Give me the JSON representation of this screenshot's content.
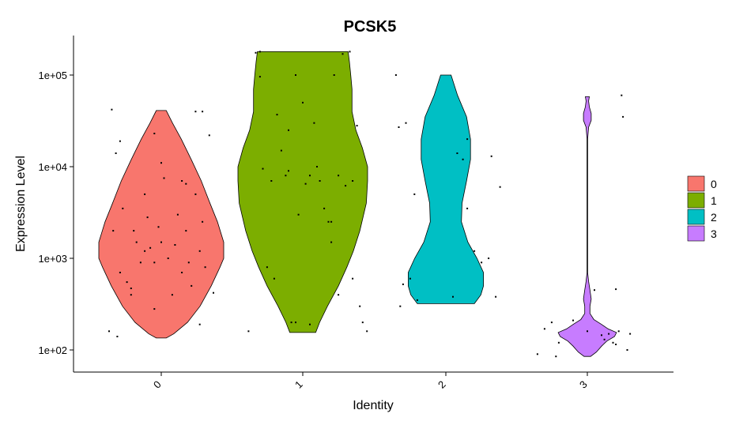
{
  "chart_data": {
    "type": "violin",
    "title": "PCSK5",
    "xlabel": "Identity",
    "ylabel": "Expression Level",
    "y_scale": "log10",
    "ylim": [
      60,
      200000
    ],
    "y_ticks": [
      {
        "value": 100,
        "label": "1e+02"
      },
      {
        "value": 1000,
        "label": "1e+03"
      },
      {
        "value": 10000,
        "label": "1e+04"
      },
      {
        "value": 100000,
        "label": "1e+05"
      }
    ],
    "categories": [
      "0",
      "1",
      "2",
      "3"
    ],
    "colors": [
      "#F8766D",
      "#7CAE00",
      "#00BFC4",
      "#C77CFF"
    ],
    "legend_position": "right",
    "series": [
      {
        "name": "0",
        "min": 135,
        "max": 41000,
        "profile": [
          [
            135,
            0.08
          ],
          [
            150,
            0.2
          ],
          [
            200,
            0.42
          ],
          [
            300,
            0.62
          ],
          [
            500,
            0.8
          ],
          [
            800,
            0.94
          ],
          [
            1000,
            1.0
          ],
          [
            1500,
            1.0
          ],
          [
            2500,
            0.9
          ],
          [
            4000,
            0.78
          ],
          [
            7000,
            0.64
          ],
          [
            12000,
            0.48
          ],
          [
            20000,
            0.32
          ],
          [
            30000,
            0.18
          ],
          [
            41000,
            0.08
          ]
        ],
        "points": [
          [
            -0.38,
            160
          ],
          [
            -0.32,
            140
          ],
          [
            -0.3,
            700
          ],
          [
            -0.28,
            3500
          ],
          [
            -0.25,
            550
          ],
          [
            -0.22,
            400
          ],
          [
            -0.35,
            2000
          ],
          [
            -0.33,
            14000
          ],
          [
            -0.36,
            42000
          ],
          [
            -0.3,
            19000
          ],
          [
            -0.18,
            1500
          ],
          [
            -0.15,
            900
          ],
          [
            -0.12,
            1200
          ],
          [
            -0.12,
            5000
          ],
          [
            -0.1,
            2800
          ],
          [
            -0.08,
            1300
          ],
          [
            -0.05,
            900
          ],
          [
            -0.05,
            23000
          ],
          [
            -0.02,
            2200
          ],
          [
            0.0,
            1500
          ],
          [
            0.02,
            7500
          ],
          [
            0.0,
            11000
          ],
          [
            0.05,
            1000
          ],
          [
            0.08,
            400
          ],
          [
            0.1,
            1400
          ],
          [
            0.12,
            3000
          ],
          [
            0.15,
            700
          ],
          [
            0.15,
            7000
          ],
          [
            0.18,
            6500
          ],
          [
            0.2,
            900
          ],
          [
            0.22,
            500
          ],
          [
            0.25,
            5000
          ],
          [
            0.28,
            1200
          ],
          [
            0.3,
            2500
          ],
          [
            0.32,
            800
          ],
          [
            0.35,
            22000
          ],
          [
            0.3,
            40000
          ],
          [
            0.25,
            40000
          ],
          [
            -0.05,
            280
          ],
          [
            -0.2,
            2000
          ],
          [
            0.38,
            420
          ],
          [
            0.28,
            190
          ],
          [
            -0.22,
            470
          ],
          [
            0.18,
            2000
          ]
        ]
      },
      {
        "name": "1",
        "min": 155,
        "max": 180000,
        "profile": [
          [
            155,
            0.2
          ],
          [
            200,
            0.26
          ],
          [
            300,
            0.38
          ],
          [
            500,
            0.55
          ],
          [
            800,
            0.68
          ],
          [
            1200,
            0.78
          ],
          [
            2000,
            0.88
          ],
          [
            4000,
            0.98
          ],
          [
            7000,
            1.0
          ],
          [
            10000,
            1.0
          ],
          [
            16000,
            0.92
          ],
          [
            25000,
            0.82
          ],
          [
            40000,
            0.76
          ],
          [
            70000,
            0.76
          ],
          [
            100000,
            0.74
          ],
          [
            140000,
            0.72
          ],
          [
            180000,
            0.7
          ]
        ],
        "points": [
          [
            -0.38,
            160
          ],
          [
            -0.33,
            175000
          ],
          [
            -0.3,
            96000
          ],
          [
            -0.3,
            180000
          ],
          [
            -0.28,
            9500
          ],
          [
            -0.25,
            800
          ],
          [
            -0.22,
            7000
          ],
          [
            -0.2,
            600
          ],
          [
            -0.18,
            37000
          ],
          [
            -0.15,
            15000
          ],
          [
            -0.12,
            8000
          ],
          [
            -0.1,
            9000
          ],
          [
            -0.08,
            200
          ],
          [
            -0.05,
            100000
          ],
          [
            -0.05,
            200
          ],
          [
            -0.03,
            3000
          ],
          [
            0.0,
            50000
          ],
          [
            0.02,
            6500
          ],
          [
            0.05,
            8000
          ],
          [
            0.08,
            30000
          ],
          [
            0.1,
            10000
          ],
          [
            0.12,
            7000
          ],
          [
            0.15,
            3500
          ],
          [
            0.18,
            2500
          ],
          [
            0.2,
            2500
          ],
          [
            0.2,
            1500
          ],
          [
            0.22,
            100000
          ],
          [
            0.25,
            8000
          ],
          [
            0.25,
            400
          ],
          [
            0.28,
            170000
          ],
          [
            0.3,
            6200
          ],
          [
            0.33,
            180000
          ],
          [
            0.35,
            7000
          ],
          [
            0.35,
            600
          ],
          [
            0.38,
            28000
          ],
          [
            0.4,
            300
          ],
          [
            0.42,
            200
          ],
          [
            0.45,
            160
          ],
          [
            -0.1,
            25000
          ],
          [
            0.05,
            190
          ]
        ]
      },
      {
        "name": "2",
        "min": 320,
        "max": 100000,
        "profile": [
          [
            320,
            0.44
          ],
          [
            400,
            0.54
          ],
          [
            500,
            0.58
          ],
          [
            700,
            0.58
          ],
          [
            1000,
            0.48
          ],
          [
            1500,
            0.34
          ],
          [
            2500,
            0.24
          ],
          [
            4000,
            0.25
          ],
          [
            7000,
            0.32
          ],
          [
            12000,
            0.38
          ],
          [
            20000,
            0.38
          ],
          [
            35000,
            0.32
          ],
          [
            60000,
            0.18
          ],
          [
            100000,
            0.08
          ]
        ],
        "points": [
          [
            -0.35,
            100000
          ],
          [
            -0.33,
            27000
          ],
          [
            -0.32,
            300
          ],
          [
            -0.3,
            520
          ],
          [
            -0.28,
            30000
          ],
          [
            -0.25,
            600
          ],
          [
            -0.22,
            5000
          ],
          [
            -0.2,
            350
          ],
          [
            0.05,
            380
          ],
          [
            0.08,
            14000
          ],
          [
            0.12,
            12000
          ],
          [
            0.15,
            3500
          ],
          [
            0.15,
            20000
          ],
          [
            0.2,
            1200
          ],
          [
            0.25,
            900
          ],
          [
            0.3,
            1000
          ],
          [
            0.35,
            380
          ],
          [
            0.38,
            6000
          ],
          [
            0.32,
            13000
          ]
        ]
      },
      {
        "name": "3",
        "min": 85,
        "max": 58000,
        "profile": [
          [
            85,
            0.05
          ],
          [
            95,
            0.14
          ],
          [
            110,
            0.22
          ],
          [
            125,
            0.3
          ],
          [
            140,
            0.42
          ],
          [
            155,
            0.45
          ],
          [
            170,
            0.32
          ],
          [
            190,
            0.22
          ],
          [
            215,
            0.1
          ],
          [
            250,
            0.04
          ],
          [
            300,
            0.04
          ],
          [
            360,
            0.06
          ],
          [
            450,
            0.04
          ],
          [
            560,
            0.02
          ],
          [
            700,
            0.005
          ],
          [
            5000,
            0.005
          ],
          [
            20000,
            0.005
          ],
          [
            27000,
            0.02
          ],
          [
            32000,
            0.06
          ],
          [
            38000,
            0.06
          ],
          [
            45000,
            0.03
          ],
          [
            52000,
            0.02
          ],
          [
            58000,
            0.03
          ]
        ],
        "points": [
          [
            -0.35,
            90
          ],
          [
            -0.3,
            170
          ],
          [
            -0.25,
            200
          ],
          [
            -0.22,
            85
          ],
          [
            -0.2,
            120
          ],
          [
            -0.1,
            210
          ],
          [
            0.0,
            160
          ],
          [
            0.05,
            450
          ],
          [
            0.1,
            145
          ],
          [
            0.12,
            130
          ],
          [
            0.15,
            150
          ],
          [
            0.18,
            120
          ],
          [
            0.2,
            460
          ],
          [
            0.22,
            160
          ],
          [
            0.24,
            60000
          ],
          [
            0.25,
            35000
          ],
          [
            0.28,
            100
          ],
          [
            0.3,
            150
          ],
          [
            0.2,
            115
          ]
        ]
      }
    ]
  }
}
